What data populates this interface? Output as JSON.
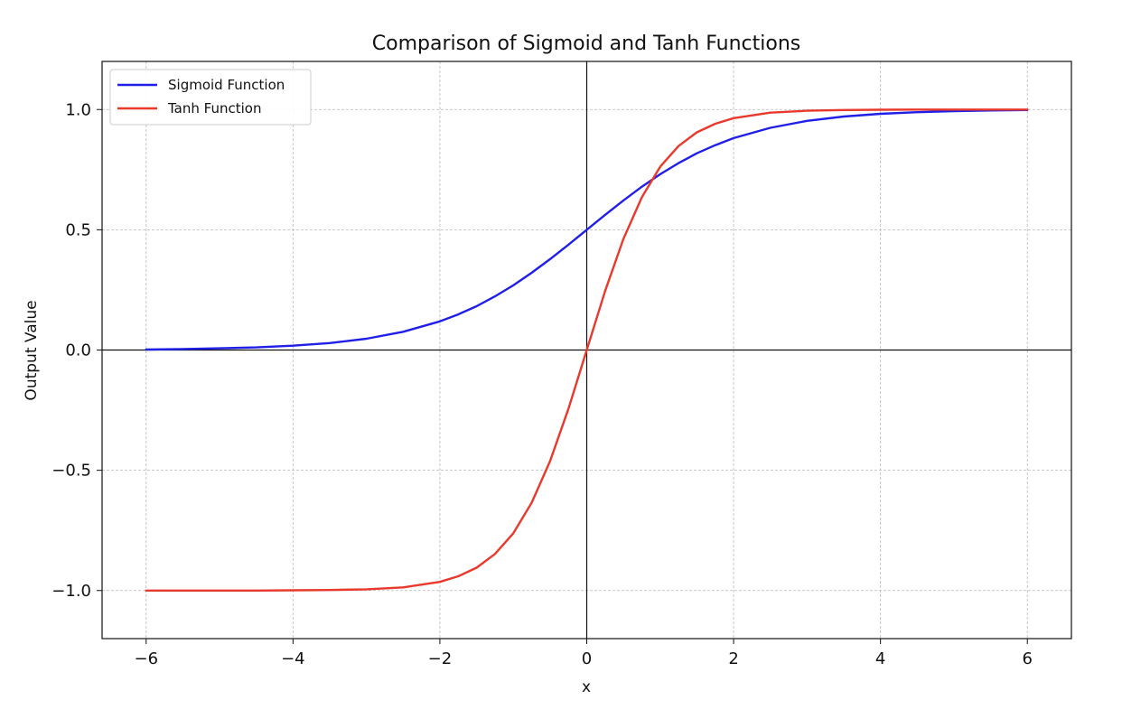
{
  "chart_data": {
    "type": "line",
    "title": "Comparison of Sigmoid and Tanh Functions",
    "xlabel": "x",
    "ylabel": "Output Value",
    "xlim": [
      -6.6,
      6.6
    ],
    "ylim": [
      -1.2,
      1.2
    ],
    "x_ticks": [
      -6,
      -4,
      -2,
      0,
      2,
      4,
      6
    ],
    "x_tick_labels": [
      "−6",
      "−4",
      "−2",
      "0",
      "2",
      "4",
      "6"
    ],
    "y_ticks": [
      -1.0,
      -0.5,
      0.0,
      0.5,
      1.0
    ],
    "y_tick_labels": [
      "−1.0",
      "−0.5",
      "0.0",
      "0.5",
      "1.0"
    ],
    "grid": true,
    "legend_position": "top-left",
    "reference_lines": {
      "x": 0,
      "y": 0
    },
    "x": [
      -6,
      -5.5,
      -5,
      -4.5,
      -4,
      -3.5,
      -3,
      -2.5,
      -2,
      -1.75,
      -1.5,
      -1.25,
      -1,
      -0.75,
      -0.5,
      -0.25,
      0,
      0.25,
      0.5,
      0.75,
      1,
      1.25,
      1.5,
      1.75,
      2,
      2.5,
      3,
      3.5,
      4,
      4.5,
      5,
      5.5,
      6
    ],
    "series": [
      {
        "name": "Sigmoid Function",
        "color": "#1f1fe8",
        "values": [
          0.002,
          0.004,
          0.007,
          0.011,
          0.018,
          0.029,
          0.047,
          0.076,
          0.119,
          0.148,
          0.182,
          0.223,
          0.269,
          0.321,
          0.378,
          0.438,
          0.5,
          0.562,
          0.622,
          0.679,
          0.731,
          0.777,
          0.818,
          0.852,
          0.881,
          0.924,
          0.953,
          0.971,
          0.982,
          0.989,
          0.993,
          0.996,
          0.998
        ]
      },
      {
        "name": "Tanh Function",
        "color": "#e8392c",
        "values": [
          -1.0,
          -1.0,
          -1.0,
          -1.0,
          -0.999,
          -0.998,
          -0.995,
          -0.987,
          -0.964,
          -0.941,
          -0.905,
          -0.848,
          -0.762,
          -0.635,
          -0.462,
          -0.245,
          0.0,
          0.245,
          0.462,
          0.635,
          0.762,
          0.848,
          0.905,
          0.941,
          0.964,
          0.987,
          0.995,
          0.998,
          0.999,
          1.0,
          1.0,
          1.0,
          1.0
        ]
      }
    ]
  }
}
